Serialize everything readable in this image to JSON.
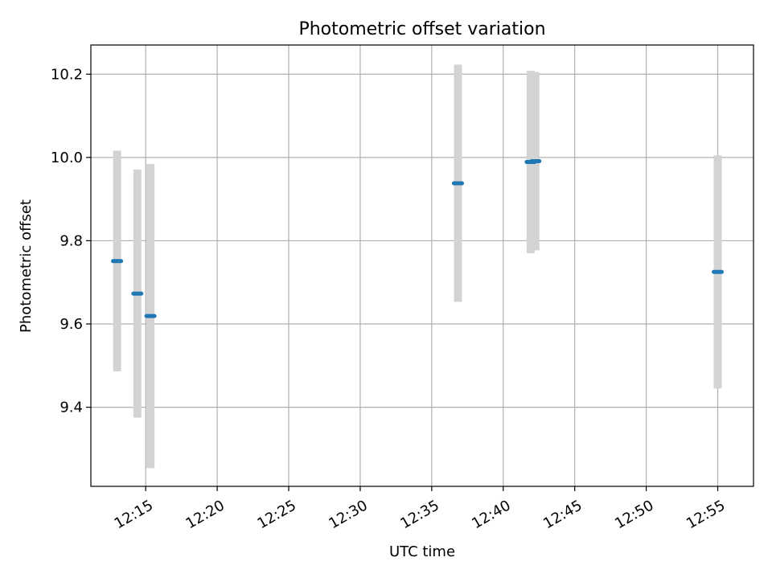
{
  "chart_data": {
    "type": "scatter",
    "title": "Photometric offset variation",
    "xlabel": "UTC time",
    "ylabel": "Photometric offset",
    "xlim": [
      "12:11:10",
      "12:57:30"
    ],
    "ylim": [
      9.21,
      10.27
    ],
    "grid": true,
    "x_ticks": [
      "12:15",
      "12:20",
      "12:25",
      "12:30",
      "12:35",
      "12:40",
      "12:45",
      "12:50",
      "12:55"
    ],
    "y_ticks": [
      "9.4",
      "9.6",
      "9.8",
      "10.0",
      "10.2"
    ],
    "points": [
      {
        "t": "12:13:00",
        "y": 9.751,
        "err": 0.265
      },
      {
        "t": "12:14:25",
        "y": 9.673,
        "err": 0.298
      },
      {
        "t": "12:15:20",
        "y": 9.619,
        "err": 0.365
      },
      {
        "t": "12:36:50",
        "y": 9.938,
        "err": 0.285
      },
      {
        "t": "12:41:55",
        "y": 9.989,
        "err": 0.219
      },
      {
        "t": "12:42:15",
        "y": 9.991,
        "err": 0.214
      },
      {
        "t": "12:55:00",
        "y": 9.725,
        "err": 0.28
      }
    ],
    "errorbar_color": "#d3d3d3",
    "marker_color": "#1f77b4",
    "grid_color": "#b0b0b0"
  }
}
